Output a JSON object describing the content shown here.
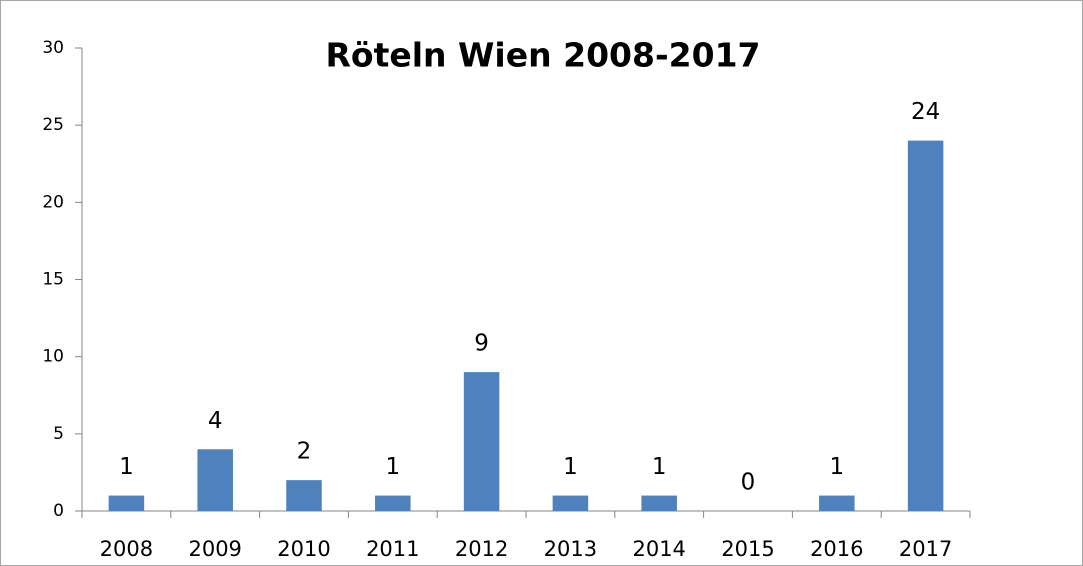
{
  "chart_data": {
    "type": "bar",
    "title": "Röteln Wien 2008-2017",
    "categories": [
      "2008",
      "2009",
      "2010",
      "2011",
      "2012",
      "2013",
      "2014",
      "2015",
      "2016",
      "2017"
    ],
    "values": [
      1,
      4,
      2,
      1,
      9,
      1,
      1,
      0,
      1,
      24
    ],
    "color": "#4f81bd",
    "ylim": [
      0,
      30
    ],
    "yticks": [
      0,
      5,
      10,
      15,
      20,
      25,
      30
    ],
    "grid": false
  }
}
